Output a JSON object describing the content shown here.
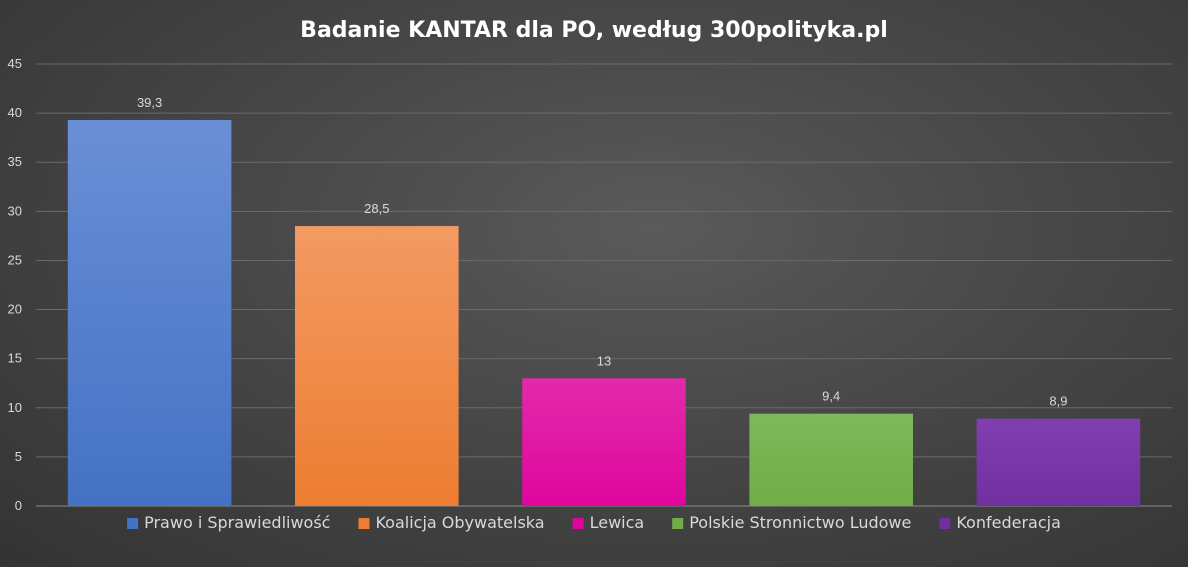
{
  "chart_data": {
    "type": "bar",
    "title": "Badanie KANTAR dla PO, według 300polityka.pl",
    "xlabel": "",
    "ylabel": "",
    "ylim": [
      0,
      45
    ],
    "y_ticks": [
      "0",
      "5",
      "10",
      "15",
      "20",
      "25",
      "30",
      "35",
      "40",
      "45"
    ],
    "grid": true,
    "legend_position": "bottom",
    "categories": [
      "Prawo i Sprawiedliwość",
      "Koalicja Obywatelska",
      "Lewica",
      "Polskie Stronnictwo Ludowe",
      "Konfederacja"
    ],
    "values": [
      39.3,
      28.5,
      13,
      9.4,
      8.9
    ],
    "data_labels": [
      "39,3",
      "28,5",
      "13",
      "9,4",
      "8,9"
    ],
    "colors": [
      "#4472c4",
      "#ed7d31",
      "#e0069d",
      "#70ad47",
      "#7030a0"
    ],
    "colors_light": [
      "#6a8fd6",
      "#f39a63",
      "#e22aab",
      "#7fb85a",
      "#7f3fb0"
    ]
  }
}
